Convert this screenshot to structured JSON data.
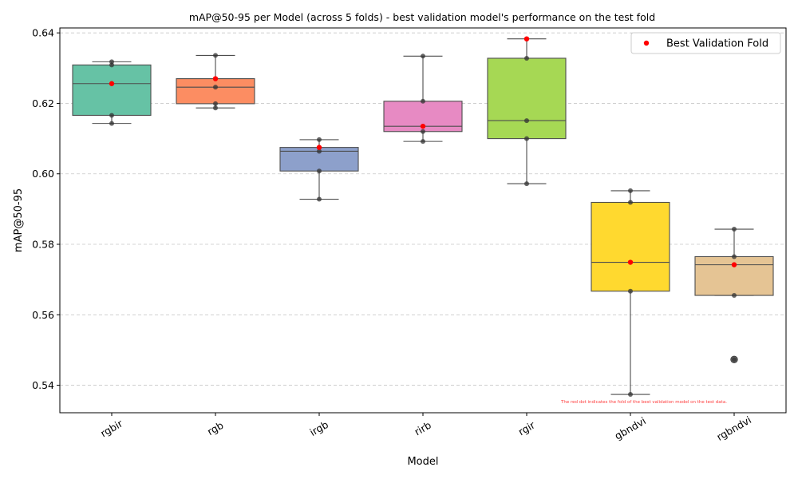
{
  "chart_data": {
    "type": "box",
    "title": "mAP@50-95 per Model (across 5 folds) -  best validation model's performance on the test fold",
    "xlabel": "Model",
    "ylabel": "mAP@50-95",
    "ylim": [
      0.5322,
      0.6414
    ],
    "yticks": [
      0.54,
      0.56,
      0.58,
      0.6,
      0.62,
      0.64
    ],
    "ytick_labels": [
      "0.54",
      "0.56",
      "0.58",
      "0.60",
      "0.62",
      "0.64"
    ],
    "grid": "y-dashed",
    "legend": {
      "placement": "top-right",
      "entries": [
        "Best Validation Fold"
      ]
    },
    "annotation": "The red dot indicates the fold of the best validation model on the test data.",
    "categories": [
      "rgbir",
      "rgb",
      "irgb",
      "rirb",
      "rgir",
      "gbndvi",
      "rgbndvi"
    ],
    "colors": [
      "#66c2a5",
      "#fc8d62",
      "#8da0cb",
      "#e78ac3",
      "#a6d854",
      "#ffd92f",
      "#e5c494"
    ],
    "boxes": [
      {
        "q1": 0.6166,
        "median": 0.6256,
        "q3": 0.6309,
        "whislo": 0.6143,
        "whishi": 0.6318,
        "outliers": []
      },
      {
        "q1": 0.6199,
        "median": 0.6246,
        "q3": 0.627,
        "whislo": 0.6187,
        "whishi": 0.6336,
        "outliers": []
      },
      {
        "q1": 0.6008,
        "median": 0.6064,
        "q3": 0.6075,
        "whislo": 0.5928,
        "whishi": 0.6097,
        "outliers": []
      },
      {
        "q1": 0.612,
        "median": 0.6135,
        "q3": 0.6206,
        "whislo": 0.6092,
        "whishi": 0.6334,
        "outliers": []
      },
      {
        "q1": 0.61,
        "median": 0.6151,
        "q3": 0.6328,
        "whislo": 0.5972,
        "whishi": 0.6383,
        "outliers": []
      },
      {
        "q1": 0.5667,
        "median": 0.5749,
        "q3": 0.5919,
        "whislo": 0.5374,
        "whishi": 0.5952,
        "outliers": []
      },
      {
        "q1": 0.5655,
        "median": 0.5742,
        "q3": 0.5765,
        "whislo": 0.5655,
        "whishi": 0.5843,
        "outliers": [
          0.5473
        ]
      }
    ],
    "fold_points": [
      [
        0.6143,
        0.6166,
        0.6309,
        0.6318
      ],
      [
        0.6187,
        0.6199,
        0.6246,
        0.6336
      ],
      [
        0.5928,
        0.6008,
        0.6064,
        0.6097
      ],
      [
        0.6092,
        0.612,
        0.6206,
        0.6334
      ],
      [
        0.5972,
        0.61,
        0.6151,
        0.6328
      ],
      [
        0.5374,
        0.5667,
        0.5919,
        0.5952
      ],
      [
        0.5473,
        0.5655,
        0.5765,
        0.5843
      ]
    ],
    "best_validation": [
      0.6256,
      0.627,
      0.6075,
      0.6135,
      0.6383,
      0.5749,
      0.5742
    ]
  }
}
